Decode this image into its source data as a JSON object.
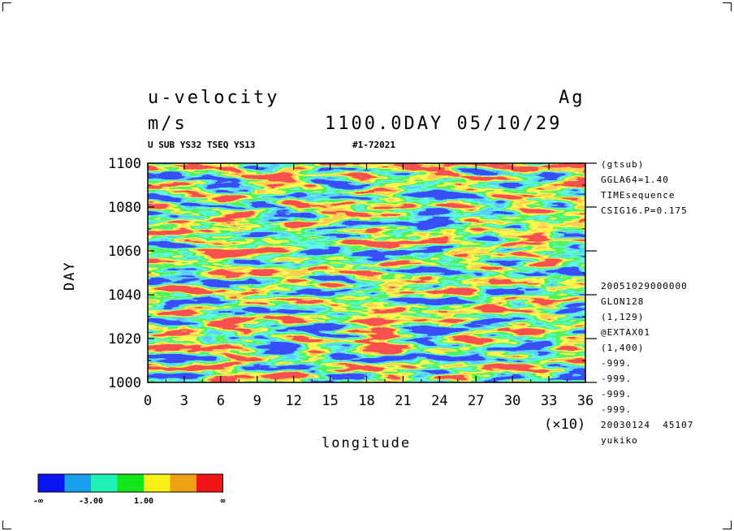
{
  "header": {
    "title_left": "u-velocity",
    "title_right": "Ag",
    "units": "m/s",
    "time_label": "1100.0DAY 05/10/29",
    "sub_left": "U SUB YS32 TSEQ YS13",
    "sub_right": "#1-72021"
  },
  "side_info": {
    "top": [
      "(gtsub)",
      "GGLA64=1.40",
      "TIMEsequence",
      "CSIG16.P=0.175"
    ],
    "bottom": [
      "20051029000000",
      "GLON128",
      "(1,129)",
      "@EXTAX01",
      "(1,400)",
      "-999.",
      "-999.",
      "-999.",
      "-999.",
      "20030124  45107",
      "yukiko"
    ]
  },
  "colorbar": {
    "colors": [
      "#0a14f0",
      "#1aa0f0",
      "#1ef0b4",
      "#14e61e",
      "#faf014",
      "#f0a014",
      "#f01414"
    ],
    "labels": [
      "-∞",
      "-3.00",
      "1.00",
      "∞"
    ]
  },
  "chart_data": {
    "type": "heatmap",
    "title": "u-velocity",
    "units": "m/s",
    "xlabel": "longitude",
    "ylabel": "DAY",
    "x_multiplier_label": "(×10)",
    "xlim": [
      0,
      36
    ],
    "ylim": [
      1000,
      1100
    ],
    "x_ticks": [
      "0",
      "3",
      "6",
      "9",
      "12",
      "15",
      "18",
      "21",
      "24",
      "27",
      "30",
      "33",
      "36"
    ],
    "y_ticks": [
      "1000",
      "1020",
      "1040",
      "1060",
      "1080",
      "1100"
    ],
    "contour_levels": [
      "-∞",
      "-3.00",
      "1.00",
      "∞"
    ]
  }
}
